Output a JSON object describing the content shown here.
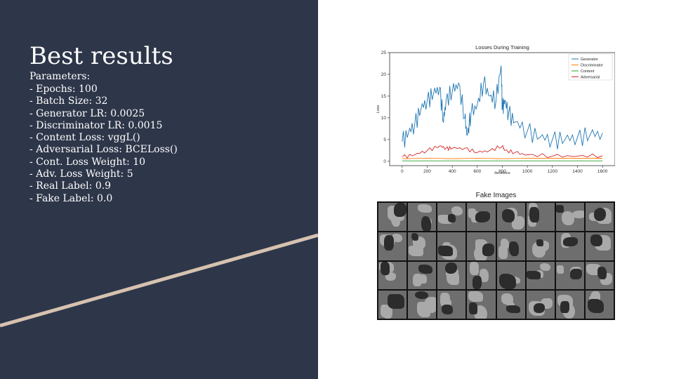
{
  "slide": {
    "title": "Best results",
    "params_label": "Parameters:",
    "params": [
      "- Epochs: 100",
      "- Batch Size: 32",
      "- Generator LR: 0.0025",
      "- Discriminator LR: 0.0015",
      "- Content Loss: vggL()",
      "- Adversarial Loss: BCELoss()",
      "- Cont. Loss Weight: 10",
      "- Adv. Loss Weight: 5",
      "- Real Label: 0.9",
      "- Fake Label: 0.0"
    ],
    "panel_color": "#2e3649",
    "accent_color": "#d6c2b0"
  },
  "fake_images": {
    "title": "Fake Images",
    "rows": 4,
    "cols": 8
  },
  "chart_data": {
    "type": "line",
    "title": "Losses During Training",
    "xlabel": "Iterations",
    "ylabel": "Loss",
    "xlim": [
      -100,
      1700
    ],
    "ylim": [
      -1,
      25
    ],
    "xticks": [
      0,
      200,
      400,
      600,
      800,
      1000,
      1200,
      1400,
      1600
    ],
    "yticks": [
      0,
      5,
      10,
      15,
      20,
      25
    ],
    "grid": false,
    "legend": "top-right",
    "series": [
      {
        "name": "Generator",
        "color": "#1f77b4",
        "x": [
          0,
          50,
          100,
          150,
          200,
          250,
          300,
          330,
          350,
          400,
          450,
          500,
          520,
          550,
          600,
          650,
          700,
          750,
          790,
          800,
          820,
          850,
          900,
          1000,
          1100,
          1200,
          1300,
          1400,
          1500,
          1600
        ],
        "y": [
          4.5,
          6.5,
          8.5,
          12,
          14,
          15.5,
          17,
          9,
          14,
          16,
          18,
          10,
          6,
          11,
          13,
          18,
          15,
          14,
          22,
          12,
          14,
          11,
          9,
          7,
          5.5,
          5,
          5,
          5.5,
          6,
          6.5
        ]
      },
      {
        "name": "Discriminator",
        "color": "#ff7f0e",
        "x": [
          0,
          200,
          400,
          600,
          800,
          1000,
          1200,
          1400,
          1600
        ],
        "y": [
          0.6,
          0.7,
          0.6,
          0.7,
          0.6,
          0.7,
          0.7,
          0.7,
          0.7
        ]
      },
      {
        "name": "Content",
        "color": "#2ca02c",
        "x": [
          0,
          200,
          400,
          600,
          800,
          1000,
          1200,
          1400,
          1600
        ],
        "y": [
          0.1,
          0.1,
          0.1,
          0.1,
          0.1,
          0.1,
          0.1,
          0.1,
          0.1
        ]
      },
      {
        "name": "Adversarial",
        "color": "#d62728",
        "x": [
          0,
          100,
          200,
          300,
          350,
          400,
          500,
          600,
          700,
          800,
          820,
          900,
          1000,
          1200,
          1400,
          1600
        ],
        "y": [
          1,
          1.5,
          2.5,
          3.5,
          3,
          3,
          3,
          2,
          2.5,
          3.5,
          2.5,
          2,
          1.5,
          1.2,
          1.2,
          1.3
        ]
      }
    ]
  }
}
